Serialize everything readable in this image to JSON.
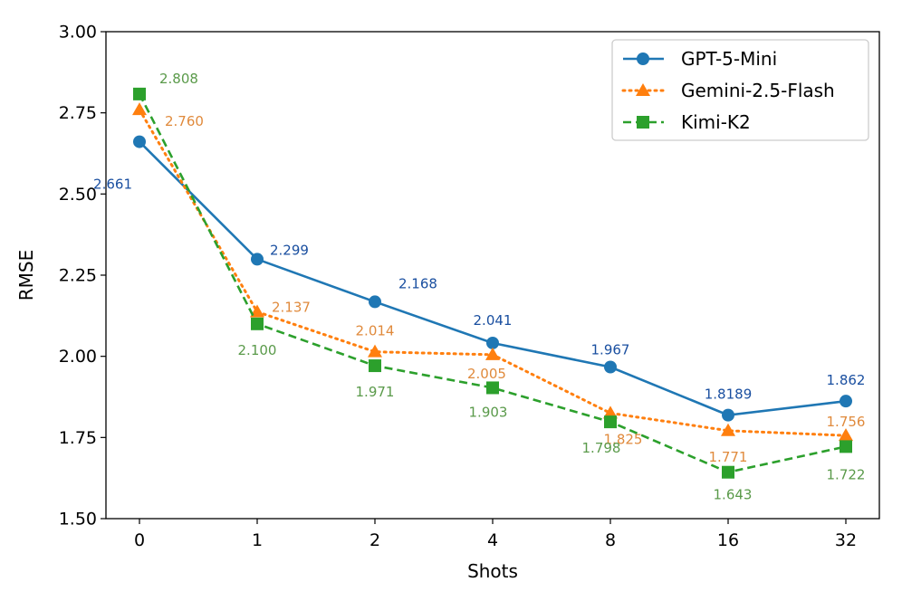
{
  "chart_data": {
    "type": "line",
    "title": "",
    "xlabel": "Shots",
    "ylabel": "RMSE",
    "categories": [
      "0",
      "1",
      "2",
      "4",
      "8",
      "16",
      "32"
    ],
    "ylim": [
      1.5,
      3.0
    ],
    "yticks": [
      "1.50",
      "1.75",
      "2.00",
      "2.25",
      "2.50",
      "2.75",
      "3.00"
    ],
    "ytick_values": [
      1.5,
      1.75,
      2.0,
      2.25,
      2.5,
      2.75,
      3.0
    ],
    "grid": false,
    "legend_position": "top-right",
    "series": [
      {
        "name": "GPT-5-Mini",
        "color": "#1f77b4",
        "label_color": "#1a4fa0",
        "marker": "circle",
        "linestyle": "solid",
        "values": [
          2.661,
          2.299,
          2.168,
          2.041,
          1.967,
          1.8189,
          1.862
        ],
        "labels": [
          "2.661",
          "2.299",
          "2.168",
          "2.041",
          "1.967",
          "1.8189",
          "1.862"
        ]
      },
      {
        "name": "Gemini-2.5-Flash",
        "color": "#ff7f0e",
        "label_color": "#e08a3c",
        "marker": "triangle",
        "linestyle": "dotted",
        "values": [
          2.76,
          2.137,
          2.014,
          2.005,
          1.825,
          1.771,
          1.756
        ],
        "labels": [
          "2.760",
          "2.137",
          "2.014",
          "2.005",
          "1.825",
          "1.771",
          "1.756"
        ]
      },
      {
        "name": "Kimi-K2",
        "color": "#2ca02c",
        "label_color": "#5a9a4a",
        "marker": "square",
        "linestyle": "dashed",
        "values": [
          2.808,
          2.1,
          1.971,
          1.903,
          1.798,
          1.643,
          1.722
        ],
        "labels": [
          "2.808",
          "2.100",
          "1.971",
          "1.903",
          "1.798",
          "1.643",
          "1.722"
        ]
      }
    ]
  }
}
